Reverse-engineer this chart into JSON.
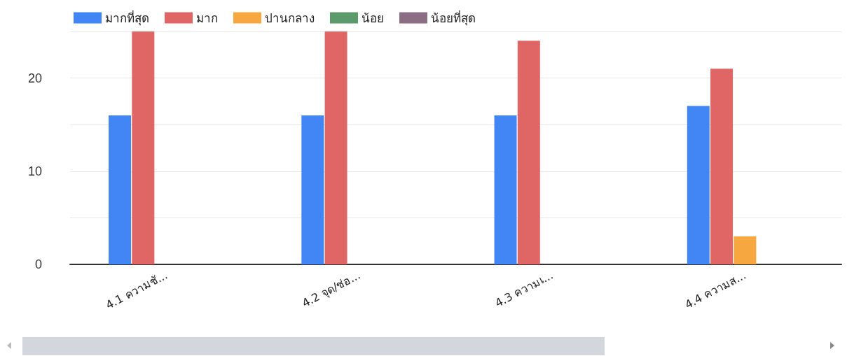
{
  "chart_data": {
    "type": "bar",
    "categories": [
      "4.1 ความชั...",
      "4.2 จุด/ช่อ...",
      "4.3 ความเ...",
      "4.4 ความส..."
    ],
    "series": [
      {
        "name": "มากที่สุด",
        "color": "#4285f4",
        "values": [
          16,
          16,
          16,
          17
        ]
      },
      {
        "name": "มาก",
        "color": "#e06666",
        "values": [
          25,
          25,
          24,
          21
        ]
      },
      {
        "name": "ปานกลาง",
        "color": "#f6a73f",
        "values": [
          0,
          0,
          0,
          3
        ]
      },
      {
        "name": "น้อย",
        "color": "#5b9b6b",
        "values": [
          0,
          0,
          0,
          0
        ]
      },
      {
        "name": "น้อยที่สุด",
        "color": "#8c6d86",
        "values": [
          0,
          0,
          0,
          0
        ]
      }
    ],
    "ylim": [
      0,
      25
    ],
    "yticks": [
      0,
      {
        "value": 5,
        "label": null
      },
      10,
      {
        "value": 15,
        "label": null
      },
      20,
      {
        "value": 25,
        "label": null
      }
    ],
    "grid": "y",
    "legend": "top left"
  }
}
